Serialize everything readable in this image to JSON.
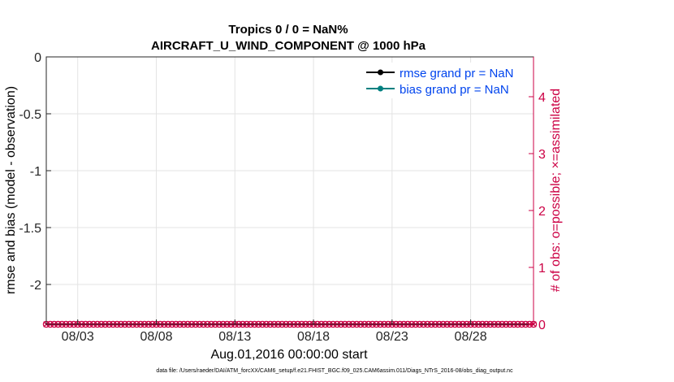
{
  "chart_data": {
    "type": "line",
    "title": "Tropics 0 / 0 = NaN%",
    "subtitle": "AIRCRAFT_U_WIND_COMPONENT @ 1000 hPa",
    "xlabel": "Aug.01,2016 00:00:00 start",
    "ylabel": "rmse and bias (model - observation)",
    "y2label": "# of obs: o=possible; ×=assimilated",
    "x_range": [
      1,
      32
    ],
    "x_ticks": [
      {
        "value": 3,
        "label": "08/03"
      },
      {
        "value": 8,
        "label": "08/08"
      },
      {
        "value": 13,
        "label": "08/13"
      },
      {
        "value": 18,
        "label": "08/18"
      },
      {
        "value": 23,
        "label": "08/23"
      },
      {
        "value": 28,
        "label": "08/28"
      }
    ],
    "ylim": [
      -2.35,
      0
    ],
    "y_ticks": [
      {
        "value": 0,
        "label": "0"
      },
      {
        "value": -0.5,
        "label": "-0.5"
      },
      {
        "value": -1,
        "label": "-1"
      },
      {
        "value": -1.5,
        "label": "-1.5"
      },
      {
        "value": -2,
        "label": "-2"
      }
    ],
    "y2lim": [
      0,
      4.7
    ],
    "y2_ticks": [
      {
        "value": 0,
        "label": "0"
      },
      {
        "value": 1,
        "label": "1"
      },
      {
        "value": 2,
        "label": "2"
      },
      {
        "value": 3,
        "label": "3"
      },
      {
        "value": 4,
        "label": "4"
      }
    ],
    "grid": true,
    "legend_position": "top-right",
    "series": [
      {
        "name": "rmse grand pr = NaN",
        "color": "#000000",
        "values": []
      },
      {
        "name": "bias grand pr = NaN",
        "color": "#008080",
        "values": []
      }
    ],
    "obs_counts": {
      "name": "# of obs",
      "color": "#cc0044",
      "x_start": 1,
      "x_step": 0.25,
      "count": 125,
      "value": 0
    },
    "footnote": "data file: /Users/raeder/DAI/ATM_forcXX/CAM6_setup/f.e21.FHIST_BGC.f09_025.CAM6assim.011/Diags_NTrS_2016-08/obs_diag_output.nc"
  }
}
